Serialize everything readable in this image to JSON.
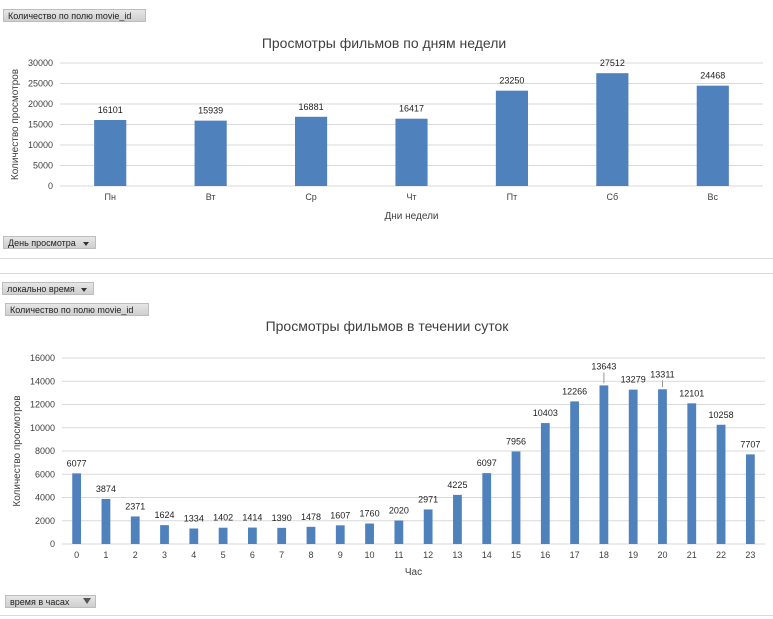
{
  "chart1_field_button": "Количество по полю movie_id",
  "chart1_axis_filter": "День просмотра",
  "chart2_filter": "локально время",
  "chart2_field_button": "Количество по полю movie_id",
  "chart2_axis_filter": "время в часах",
  "colors": {
    "bar": "#4f81bd",
    "grid": "#d9d9d9",
    "text": "#404040"
  },
  "chart_data": [
    {
      "type": "bar",
      "title": "Просмотры фильмов по дням недели",
      "xlabel": "Дни недели",
      "ylabel": "Количество просмотров",
      "ylim": [
        0,
        30000
      ],
      "yticks": [
        0,
        5000,
        10000,
        15000,
        20000,
        25000,
        30000
      ],
      "categories": [
        "Пн",
        "Вт",
        "Ср",
        "Чт",
        "Пт",
        "Сб",
        "Вс"
      ],
      "values": [
        16101,
        15939,
        16881,
        16417,
        23250,
        27512,
        24468
      ],
      "grid": true,
      "legend": "none"
    },
    {
      "type": "bar",
      "title": "Просмотры фильмов в течении суток",
      "xlabel": "Час",
      "ylabel": "Количество просмотров",
      "ylim": [
        0,
        16000
      ],
      "yticks": [
        0,
        2000,
        4000,
        6000,
        8000,
        10000,
        12000,
        14000,
        16000
      ],
      "categories": [
        "0",
        "1",
        "2",
        "3",
        "4",
        "5",
        "6",
        "7",
        "8",
        "9",
        "10",
        "11",
        "12",
        "13",
        "14",
        "15",
        "16",
        "17",
        "18",
        "19",
        "20",
        "21",
        "22",
        "23"
      ],
      "values": [
        6077,
        3874,
        2371,
        1624,
        1334,
        1402,
        1414,
        1390,
        1478,
        1607,
        1760,
        2020,
        2971,
        4225,
        6097,
        7956,
        10403,
        12266,
        13643,
        13279,
        13311,
        12101,
        10258,
        7707
      ],
      "grid": true,
      "legend": "none"
    }
  ]
}
